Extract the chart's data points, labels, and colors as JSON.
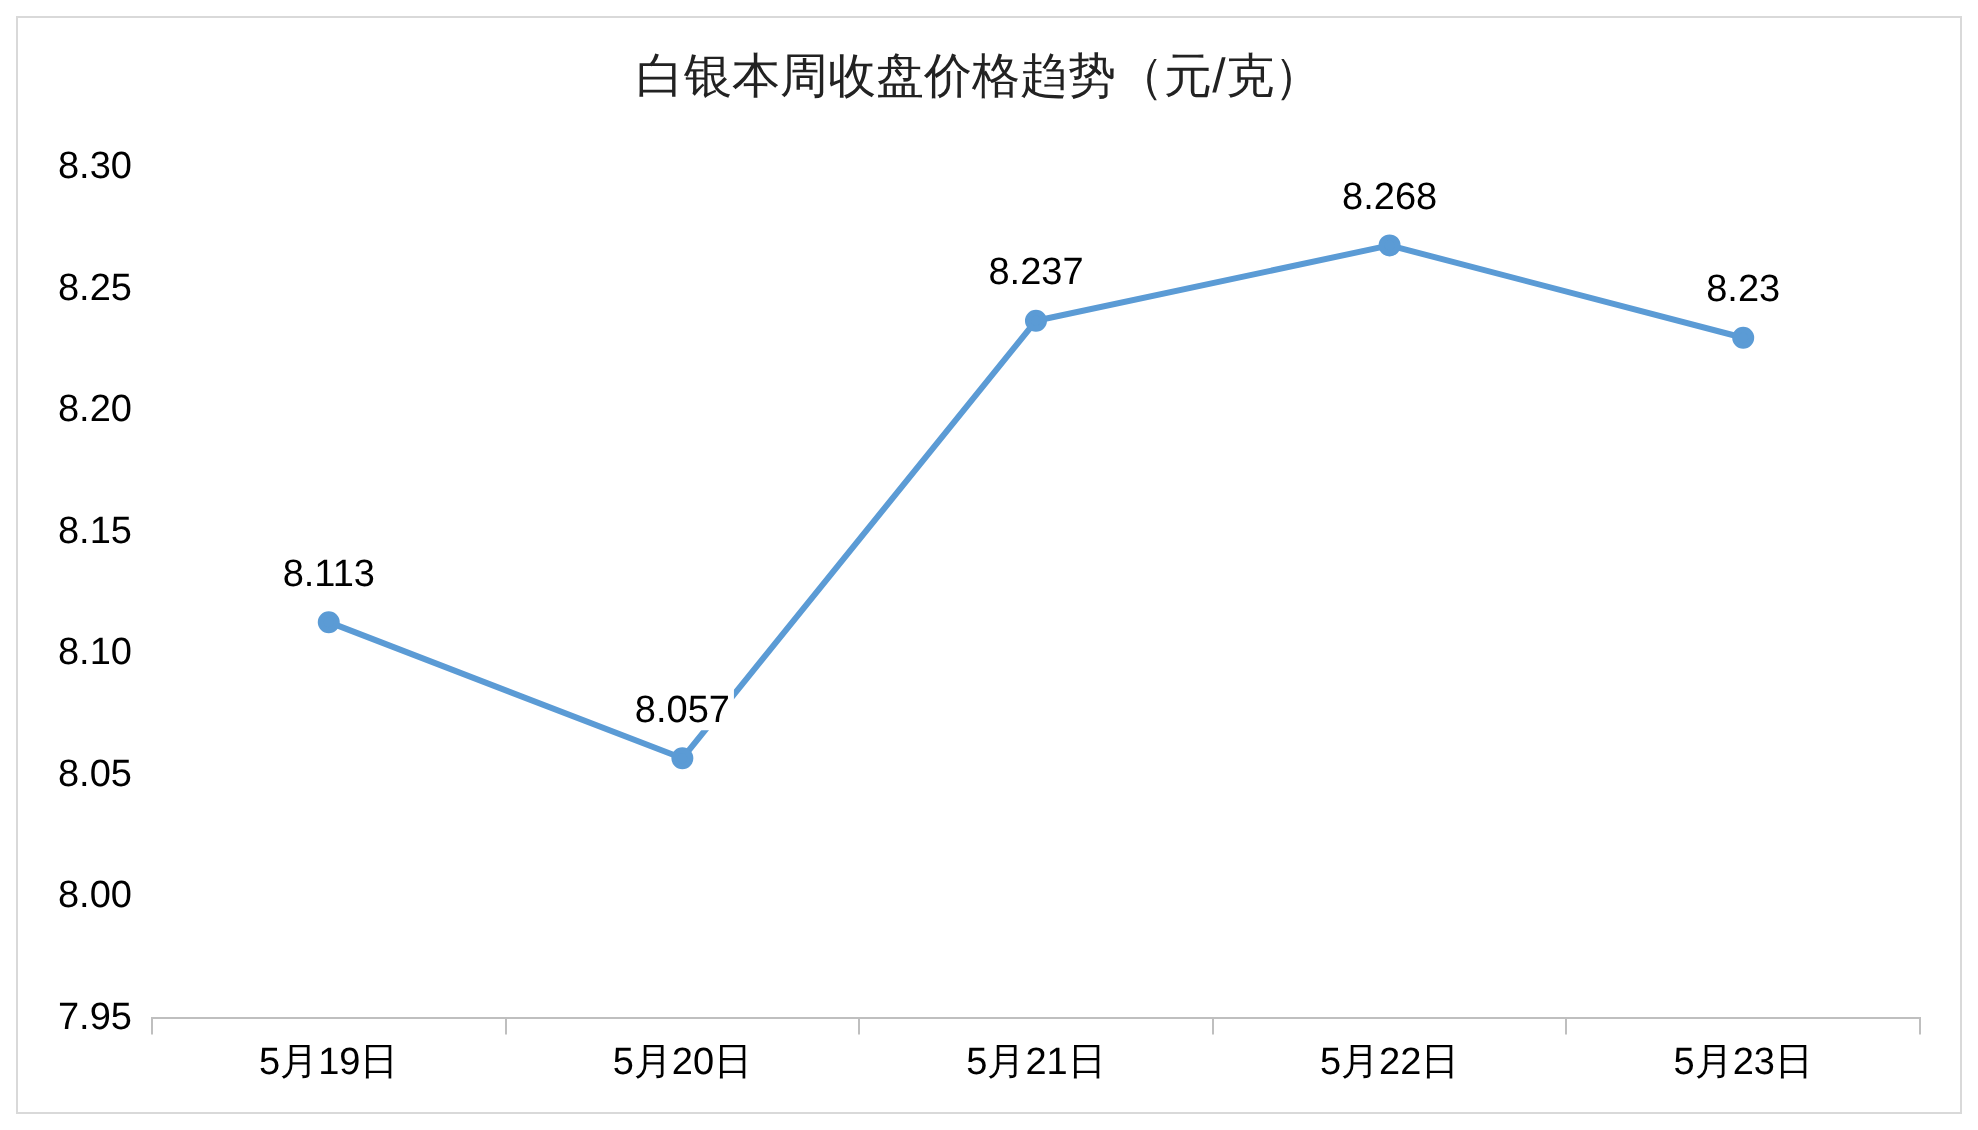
{
  "chart_data": {
    "type": "line",
    "title": "白银本周收盘价格趋势（元/克）",
    "categories": [
      "5月19日",
      "5月20日",
      "5月21日",
      "5月22日",
      "5月23日"
    ],
    "series": [
      {
        "color": "#5b9bd5",
        "values": [
          8.113,
          8.057,
          8.237,
          8.268,
          8.23
        ]
      }
    ],
    "ylim": [
      7.95,
      8.3
    ],
    "yticks": [
      {
        "value": 7.95,
        "label": "7.95"
      },
      {
        "value": 8.0,
        "label": "8.00"
      },
      {
        "value": 8.05,
        "label": "8.05"
      },
      {
        "value": 8.1,
        "label": "8.10"
      },
      {
        "value": 8.15,
        "label": "8.15"
      },
      {
        "value": 8.2,
        "label": "8.20"
      },
      {
        "value": 8.25,
        "label": "8.25"
      },
      {
        "value": 8.3,
        "label": "8.30"
      }
    ],
    "grid": false,
    "legend": false,
    "marker": "circle",
    "line_style": "solid",
    "data_labels": true
  }
}
